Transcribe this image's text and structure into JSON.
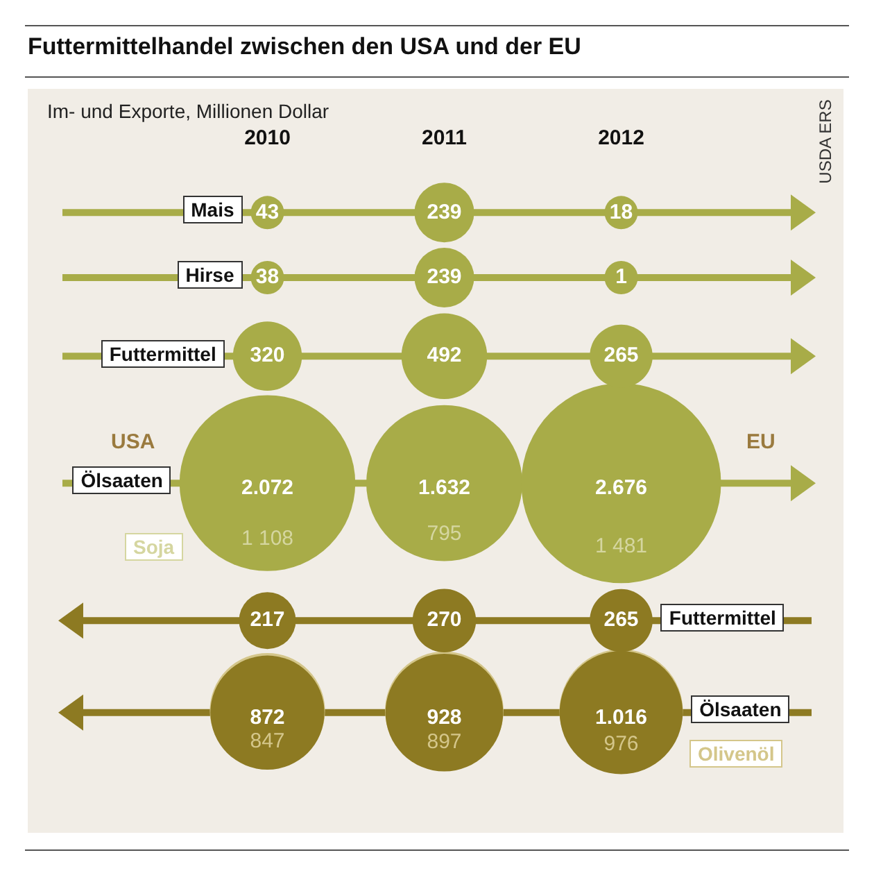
{
  "chart_data": {
    "type": "other",
    "title": "Futtermittelhandel zwischen den USA und der EU",
    "subtitle": "Im- und Exporte, Millionen Dollar",
    "categories": [
      "2010",
      "2011",
      "2012"
    ],
    "series": [
      {
        "name": "Mais",
        "color": "#a8ac48",
        "values": [
          43,
          239,
          18
        ],
        "value_labels": [
          "43",
          "239",
          "18"
        ]
      },
      {
        "name": "Hirse",
        "color": "#a8ac48",
        "values": [
          38,
          239,
          1
        ],
        "value_labels": [
          "38",
          "239",
          "1"
        ]
      },
      {
        "name": "Futtermittel",
        "color": "#a8ac48",
        "values": [
          320,
          492,
          265
        ],
        "value_labels": [
          "320",
          "492",
          "265"
        ]
      },
      {
        "name": "Ölsaaten",
        "color": "#a8ac48",
        "values": [
          2072,
          1632,
          2676
        ],
        "value_labels": [
          "2.072",
          "1.632",
          "2.676"
        ]
      },
      {
        "name": "Soja",
        "color": "#d5d6a0",
        "values": [
          1108,
          795,
          1481
        ],
        "value_labels": [
          "1 108",
          "795",
          "1 481"
        ]
      },
      {
        "name": "Futtermittel",
        "color": "#8d7a22",
        "values": [
          217,
          270,
          265
        ],
        "value_labels": [
          "217",
          "270",
          "265"
        ]
      },
      {
        "name": "Ölsaaten",
        "color": "#8d7a22",
        "values": [
          872,
          928,
          1016
        ],
        "value_labels": [
          "872",
          "928",
          "1.016"
        ]
      },
      {
        "name": "Olivenöl",
        "color": "#d4c68a",
        "values": [
          847,
          897,
          976
        ],
        "value_labels": [
          "847",
          "897",
          "976"
        ]
      }
    ],
    "annotations": [
      "USA",
      "EU",
      "USDA ERS"
    ],
    "legend": false
  }
}
